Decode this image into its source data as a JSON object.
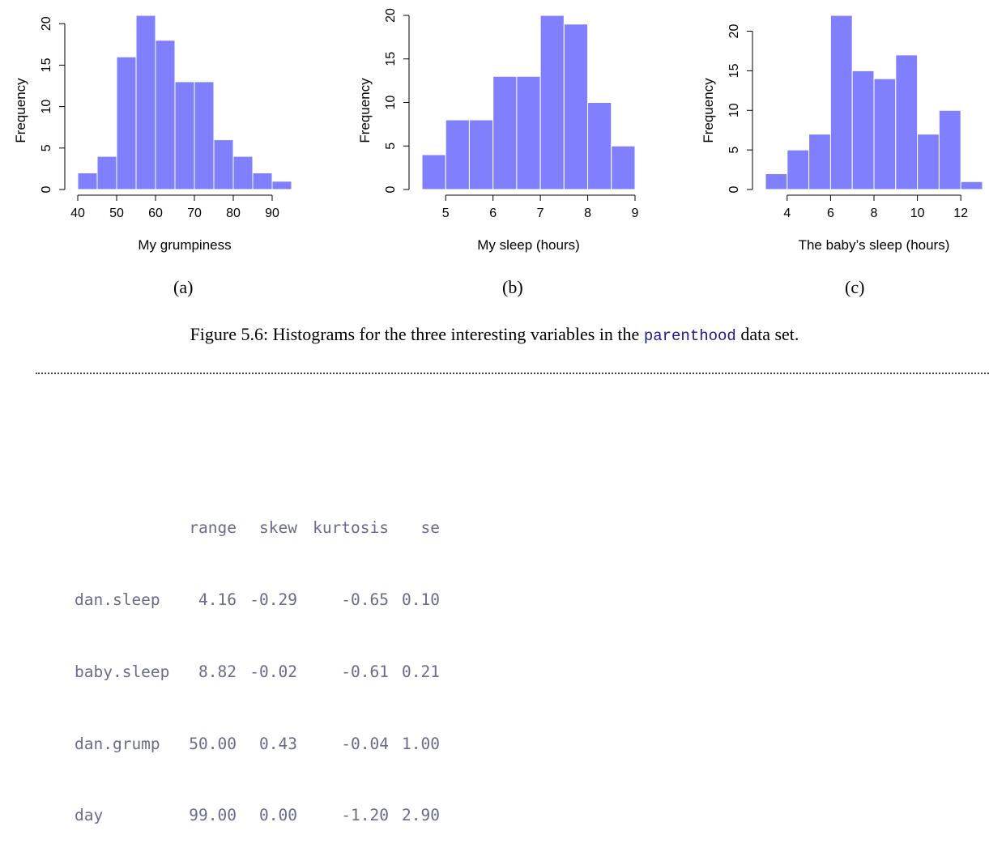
{
  "chart_data": [
    {
      "type": "bar",
      "title": "",
      "xlabel": "My grumpiness",
      "ylabel": "Frequency",
      "bin_edges": [
        40,
        45,
        50,
        55,
        60,
        65,
        70,
        75,
        80,
        85,
        90,
        95
      ],
      "values": [
        2,
        4,
        16,
        21,
        18,
        13,
        13,
        6,
        4,
        2,
        1
      ],
      "xticks": [
        40,
        50,
        60,
        70,
        80,
        90
      ],
      "yticks": [
        0,
        5,
        10,
        15,
        20
      ],
      "xlim": [
        40,
        95
      ],
      "ylim": [
        0,
        21
      ],
      "bar_color": "#8080ff",
      "sublabel": "(a)"
    },
    {
      "type": "bar",
      "title": "",
      "xlabel": "My sleep (hours)",
      "ylabel": "Frequency",
      "bin_edges": [
        4.5,
        5.0,
        5.5,
        6.0,
        6.5,
        7.0,
        7.5,
        8.0,
        8.5,
        9.0
      ],
      "values": [
        4,
        8,
        8,
        13,
        13,
        20,
        19,
        10,
        5
      ],
      "xticks": [
        5,
        6,
        7,
        8,
        9
      ],
      "yticks": [
        0,
        5,
        10,
        15,
        20
      ],
      "xlim": [
        4.5,
        9.0
      ],
      "ylim": [
        0,
        20
      ],
      "bar_color": "#8080ff",
      "sublabel": "(b)"
    },
    {
      "type": "bar",
      "title": "",
      "xlabel": "The baby’s sleep (hours)",
      "ylabel": "Frequency",
      "bin_edges": [
        3,
        4,
        5,
        6,
        7,
        8,
        9,
        10,
        11,
        12,
        13
      ],
      "values": [
        2,
        5,
        7,
        22,
        15,
        14,
        17,
        7,
        10,
        1
      ],
      "xticks": [
        4,
        6,
        8,
        10,
        12
      ],
      "yticks": [
        0,
        5,
        10,
        15,
        20
      ],
      "xlim": [
        3,
        13
      ],
      "ylim": [
        0,
        22
      ],
      "bar_color": "#8080ff",
      "sublabel": "(c)"
    }
  ],
  "caption": {
    "prefix": "Figure 5.6: Histograms for the three interesting variables in the ",
    "code": "parenthood",
    "suffix": " data set."
  },
  "table": {
    "columns": [
      "",
      "range",
      "skew",
      "kurtosis",
      "se"
    ],
    "rows": [
      [
        "dan.sleep",
        "4.16",
        "-0.29",
        "-0.65",
        "0.10"
      ],
      [
        "baby.sleep",
        "8.82",
        "-0.02",
        "-0.61",
        "0.21"
      ],
      [
        "dan.grump",
        "50.00",
        "0.43",
        "-0.04",
        "1.00"
      ],
      [
        "day",
        "99.00",
        "0.00",
        "-1.20",
        "2.90"
      ]
    ]
  }
}
